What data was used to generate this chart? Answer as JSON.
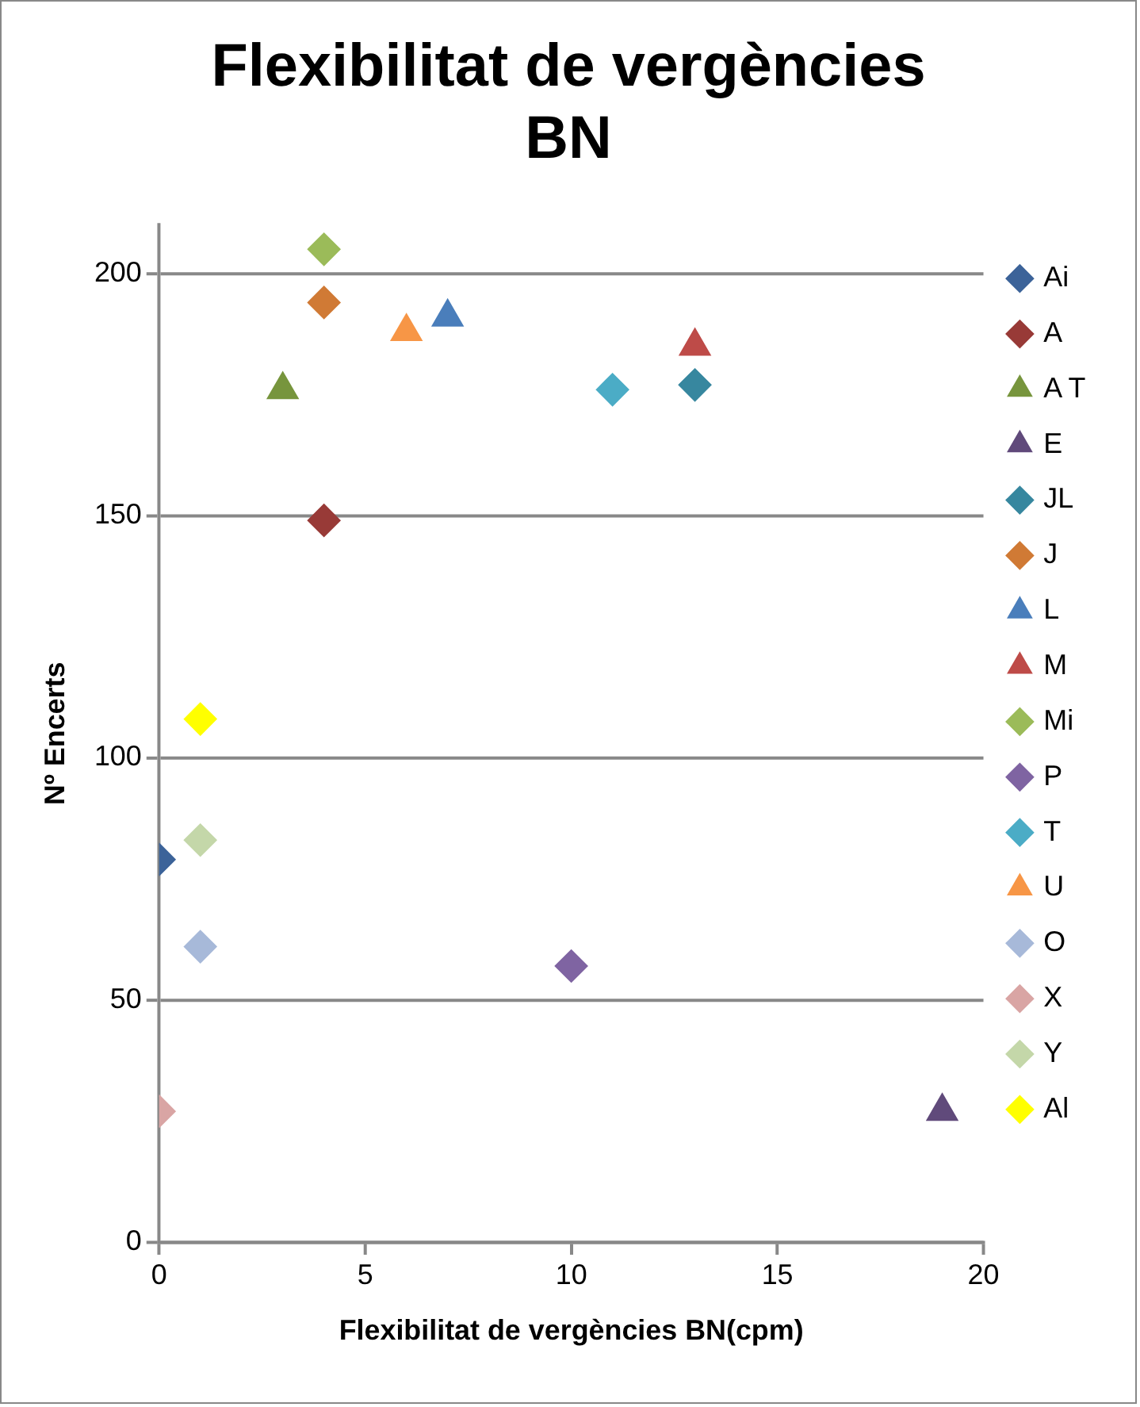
{
  "chart_data": {
    "type": "scatter",
    "title": "Flexibilitat de vergències BN",
    "xlabel": "Flexibilitat de vergències BN(cpm)",
    "ylabel": "Nº Encerts",
    "xlim": [
      0,
      20
    ],
    "xticks": [
      0,
      5,
      10,
      15,
      20
    ],
    "ylim": [
      0,
      210
    ],
    "yticks": [
      0,
      50,
      100,
      150,
      200
    ],
    "grid": "y",
    "legend": "right",
    "series": [
      {
        "name": "Ai",
        "color": "#3c6399",
        "marker": "diamond",
        "x": [
          0
        ],
        "values": [
          79
        ]
      },
      {
        "name": "A",
        "color": "#983a37",
        "marker": "diamond",
        "x": [
          4
        ],
        "values": [
          149
        ]
      },
      {
        "name": "A T",
        "color": "#77953d",
        "marker": "triangle",
        "x": [
          3
        ],
        "values": [
          176
        ]
      },
      {
        "name": "E",
        "color": "#604a7b",
        "marker": "triangle",
        "x": [
          19
        ],
        "values": [
          27
        ]
      },
      {
        "name": "JL",
        "color": "#37879f",
        "marker": "diamond",
        "x": [
          13
        ],
        "values": [
          177
        ]
      },
      {
        "name": "J",
        "color": "#d07a35",
        "marker": "diamond",
        "x": [
          4
        ],
        "values": [
          194
        ]
      },
      {
        "name": "L",
        "color": "#4a7ebb",
        "marker": "triangle",
        "x": [
          7
        ],
        "values": [
          191
        ]
      },
      {
        "name": "M",
        "color": "#be4b48",
        "marker": "triangle",
        "x": [
          13
        ],
        "values": [
          185
        ]
      },
      {
        "name": "Mi",
        "color": "#9bbb59",
        "marker": "diamond",
        "x": [
          4
        ],
        "values": [
          205
        ]
      },
      {
        "name": "P",
        "color": "#7f64a2",
        "marker": "diamond",
        "x": [
          10
        ],
        "values": [
          57
        ]
      },
      {
        "name": "T",
        "color": "#4bacc6",
        "marker": "diamond",
        "x": [
          11
        ],
        "values": [
          176
        ]
      },
      {
        "name": "U",
        "color": "#f79646",
        "marker": "triangle",
        "x": [
          6
        ],
        "values": [
          188
        ]
      },
      {
        "name": "O",
        "color": "#a7b9d9",
        "marker": "diamond",
        "x": [
          1
        ],
        "values": [
          61
        ]
      },
      {
        "name": "X",
        "color": "#d9a5a4",
        "marker": "diamond",
        "x": [
          0
        ],
        "values": [
          27
        ]
      },
      {
        "name": "Y",
        "color": "#c4d7a9",
        "marker": "diamond",
        "x": [
          1
        ],
        "values": [
          83
        ]
      },
      {
        "name": "Al",
        "color": "#ffff00",
        "marker": "diamond",
        "x": [
          1
        ],
        "values": [
          108
        ]
      }
    ]
  }
}
